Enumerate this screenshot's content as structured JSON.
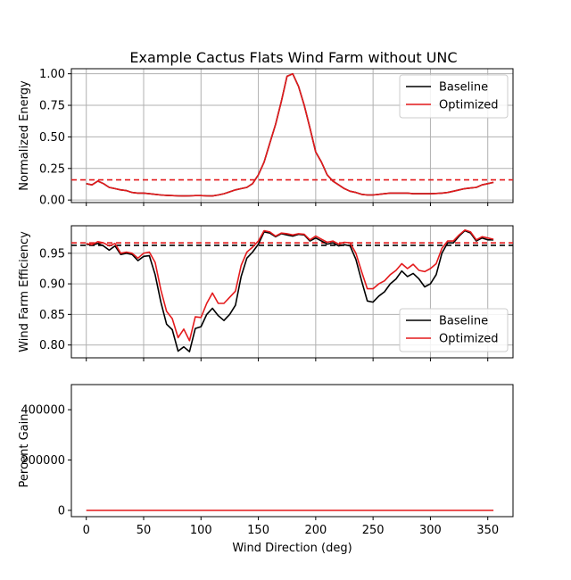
{
  "figure_title": "Example Cactus Flats Wind Farm without UNC",
  "colors": {
    "baseline": "#000000",
    "optimized": "#e41a1c",
    "grid": "#b0b0b0"
  },
  "chart_data": [
    {
      "type": "line",
      "ylabel": "Normalized Energy",
      "xlim": [
        -13,
        372
      ],
      "ylim": [
        -0.02,
        1.04
      ],
      "yticks": [
        0.0,
        0.25,
        0.5,
        0.75,
        1.0
      ],
      "ytick_labels": [
        "0.00",
        "0.25",
        "0.50",
        "0.75",
        "1.00"
      ],
      "legend": "top-right",
      "grid": true,
      "x": [
        0,
        5,
        10,
        15,
        20,
        25,
        30,
        35,
        40,
        45,
        50,
        55,
        60,
        65,
        70,
        75,
        80,
        85,
        90,
        95,
        100,
        105,
        110,
        115,
        120,
        125,
        130,
        135,
        140,
        145,
        150,
        155,
        160,
        165,
        170,
        175,
        180,
        185,
        190,
        195,
        200,
        205,
        210,
        215,
        220,
        225,
        230,
        235,
        240,
        245,
        250,
        255,
        260,
        265,
        270,
        275,
        280,
        285,
        290,
        295,
        300,
        305,
        310,
        315,
        320,
        325,
        330,
        335,
        340,
        345,
        350,
        355
      ],
      "series": [
        {
          "name": "Baseline",
          "values": [
            0.13,
            0.12,
            0.15,
            0.13,
            0.1,
            0.09,
            0.08,
            0.075,
            0.06,
            0.055,
            0.055,
            0.05,
            0.045,
            0.04,
            0.037,
            0.035,
            0.033,
            0.032,
            0.033,
            0.035,
            0.035,
            0.033,
            0.032,
            0.04,
            0.05,
            0.065,
            0.08,
            0.09,
            0.1,
            0.13,
            0.2,
            0.3,
            0.45,
            0.6,
            0.78,
            0.98,
            1.0,
            0.9,
            0.75,
            0.57,
            0.38,
            0.3,
            0.2,
            0.15,
            0.12,
            0.09,
            0.07,
            0.06,
            0.045,
            0.04,
            0.04,
            0.045,
            0.05,
            0.055,
            0.055,
            0.055,
            0.055,
            0.05,
            0.05,
            0.05,
            0.05,
            0.052,
            0.055,
            0.06,
            0.07,
            0.08,
            0.09,
            0.095,
            0.1,
            0.12,
            0.13,
            0.14
          ]
        },
        {
          "name": "Optimized",
          "values": [
            0.13,
            0.12,
            0.15,
            0.13,
            0.1,
            0.09,
            0.08,
            0.075,
            0.06,
            0.055,
            0.055,
            0.05,
            0.045,
            0.04,
            0.037,
            0.035,
            0.033,
            0.032,
            0.033,
            0.035,
            0.035,
            0.033,
            0.032,
            0.04,
            0.05,
            0.065,
            0.08,
            0.09,
            0.1,
            0.13,
            0.2,
            0.3,
            0.45,
            0.6,
            0.78,
            0.98,
            1.0,
            0.9,
            0.75,
            0.57,
            0.38,
            0.3,
            0.2,
            0.15,
            0.12,
            0.09,
            0.07,
            0.06,
            0.045,
            0.04,
            0.04,
            0.045,
            0.05,
            0.055,
            0.055,
            0.055,
            0.055,
            0.05,
            0.05,
            0.05,
            0.05,
            0.052,
            0.055,
            0.06,
            0.07,
            0.08,
            0.09,
            0.095,
            0.1,
            0.12,
            0.13,
            0.14
          ]
        }
      ],
      "hlines": [
        {
          "y": 0.16,
          "color": "#e41a1c",
          "style": "dashed"
        }
      ]
    },
    {
      "type": "line",
      "ylabel": "Wind Farm Efficiency",
      "xlim": [
        -13,
        372
      ],
      "ylim": [
        0.779,
        0.995
      ],
      "yticks": [
        0.8,
        0.85,
        0.9,
        0.95
      ],
      "ytick_labels": [
        "0.80",
        "0.85",
        "0.90",
        "0.95"
      ],
      "legend": "bottom-right",
      "grid": true,
      "x": [
        0,
        5,
        10,
        15,
        20,
        25,
        30,
        35,
        40,
        45,
        50,
        55,
        60,
        65,
        70,
        75,
        80,
        85,
        90,
        95,
        100,
        105,
        110,
        115,
        120,
        125,
        130,
        135,
        140,
        145,
        150,
        155,
        160,
        165,
        170,
        175,
        180,
        185,
        190,
        195,
        200,
        205,
        210,
        215,
        220,
        225,
        230,
        235,
        240,
        245,
        250,
        255,
        260,
        265,
        270,
        275,
        280,
        285,
        290,
        295,
        300,
        305,
        310,
        315,
        320,
        325,
        330,
        335,
        340,
        345,
        350,
        355
      ],
      "series": [
        {
          "name": "Baseline",
          "values": [
            0.965,
            0.963,
            0.966,
            0.962,
            0.955,
            0.962,
            0.948,
            0.95,
            0.948,
            0.938,
            0.945,
            0.946,
            0.915,
            0.87,
            0.834,
            0.825,
            0.79,
            0.797,
            0.789,
            0.827,
            0.83,
            0.85,
            0.86,
            0.848,
            0.84,
            0.85,
            0.865,
            0.912,
            0.942,
            0.952,
            0.965,
            0.985,
            0.983,
            0.977,
            0.982,
            0.98,
            0.978,
            0.981,
            0.98,
            0.97,
            0.975,
            0.97,
            0.965,
            0.967,
            0.962,
            0.964,
            0.962,
            0.94,
            0.905,
            0.872,
            0.87,
            0.88,
            0.887,
            0.9,
            0.908,
            0.921,
            0.912,
            0.917,
            0.908,
            0.895,
            0.9,
            0.915,
            0.95,
            0.967,
            0.967,
            0.978,
            0.987,
            0.983,
            0.97,
            0.975,
            0.972,
            0.972
          ]
        },
        {
          "name": "Optimized",
          "values": [
            0.966,
            0.964,
            0.969,
            0.967,
            0.962,
            0.966,
            0.95,
            0.952,
            0.95,
            0.942,
            0.95,
            0.952,
            0.935,
            0.89,
            0.855,
            0.843,
            0.812,
            0.826,
            0.807,
            0.846,
            0.845,
            0.868,
            0.885,
            0.868,
            0.868,
            0.878,
            0.888,
            0.93,
            0.952,
            0.96,
            0.97,
            0.987,
            0.985,
            0.978,
            0.983,
            0.982,
            0.98,
            0.982,
            0.981,
            0.972,
            0.978,
            0.973,
            0.968,
            0.97,
            0.965,
            0.968,
            0.967,
            0.95,
            0.92,
            0.892,
            0.892,
            0.9,
            0.905,
            0.915,
            0.922,
            0.933,
            0.925,
            0.932,
            0.922,
            0.92,
            0.925,
            0.933,
            0.958,
            0.97,
            0.97,
            0.98,
            0.988,
            0.985,
            0.972,
            0.977,
            0.975,
            0.973
          ]
        }
      ],
      "hlines": [
        {
          "y": 0.963,
          "color": "#000000",
          "style": "dashed"
        },
        {
          "y": 0.967,
          "color": "#e41a1c",
          "style": "dashed"
        }
      ]
    },
    {
      "type": "line",
      "ylabel": "Percent Gain",
      "xlabel": "Wind Direction (deg)",
      "xlim": [
        -13,
        372
      ],
      "ylim": [
        -25000,
        500000
      ],
      "yticks": [
        0,
        200000,
        400000
      ],
      "ytick_labels": [
        "0",
        "200000",
        "400000"
      ],
      "xticks": [
        0,
        50,
        100,
        150,
        200,
        250,
        300,
        350
      ],
      "xtick_labels": [
        "0",
        "50",
        "100",
        "150",
        "200",
        "250",
        "300",
        "350"
      ],
      "grid": false,
      "x": [
        0,
        355
      ],
      "series": [
        {
          "name": "",
          "values": [
            0,
            0
          ]
        }
      ]
    }
  ]
}
